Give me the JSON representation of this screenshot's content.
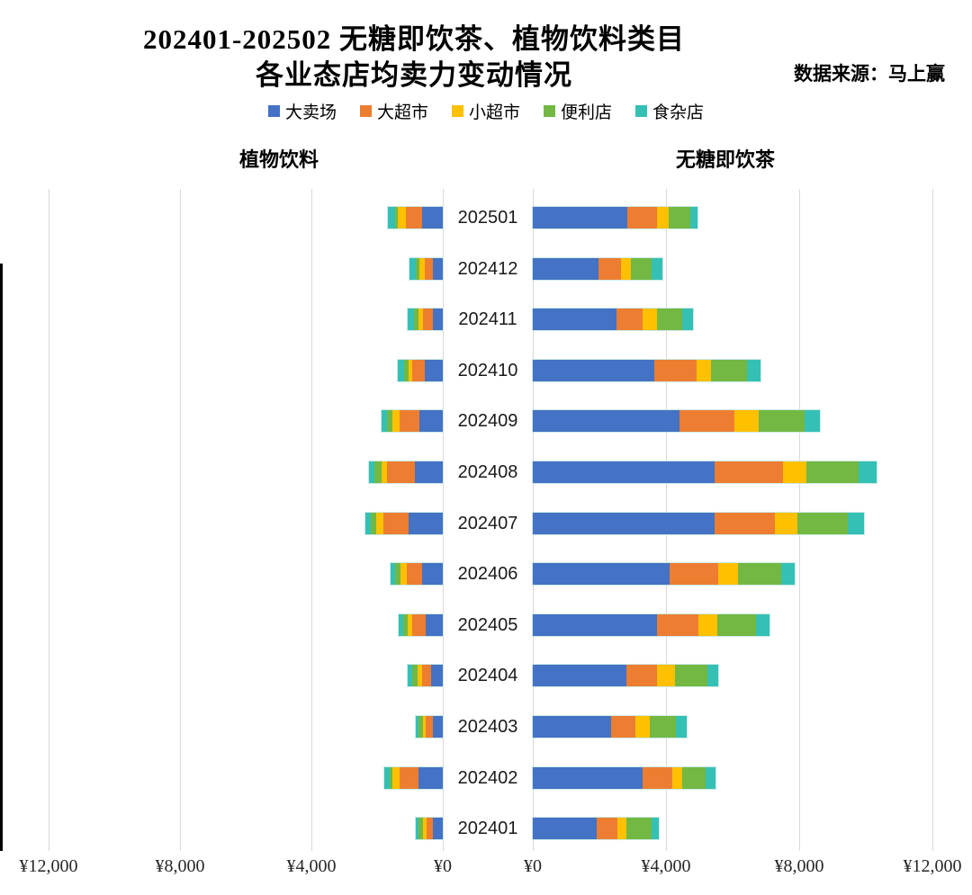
{
  "header": {
    "title_line1": "202401-202502 无糖即饮茶、植物饮料类目",
    "title_line2": "各业态店均卖力变动情况",
    "source": "数据来源：马上赢"
  },
  "legend": [
    {
      "label": "大卖场",
      "key": "hypermarket",
      "color": "#4472C4"
    },
    {
      "label": "大超市",
      "key": "big-supermarket",
      "color": "#ED7D31"
    },
    {
      "label": "小超市",
      "key": "small-supermarket",
      "color": "#FFC000"
    },
    {
      "label": "便利店",
      "key": "convenience-store",
      "color": "#72B843"
    },
    {
      "label": "食杂店",
      "key": "grocery-store",
      "color": "#35C0B5"
    }
  ],
  "panels": {
    "left_title": "植物饮料",
    "right_title": "无糖即饮茶"
  },
  "chart_data": [
    {
      "type": "bar",
      "subtype": "horizontal-stacked",
      "title": "植物饮料",
      "direction": "leftward",
      "unit": "¥ per store (店均卖力)",
      "categories": [
        "202501",
        "202412",
        "202411",
        "202410",
        "202409",
        "202408",
        "202407",
        "202406",
        "202405",
        "202404",
        "202403",
        "202402",
        "202401"
      ],
      "series": [
        {
          "name": "大卖场",
          "values": [
            640,
            310,
            310,
            560,
            700,
            860,
            1030,
            620,
            520,
            360,
            310,
            740,
            290
          ]
        },
        {
          "name": "大超市",
          "values": [
            480,
            250,
            280,
            370,
            620,
            850,
            780,
            490,
            400,
            280,
            210,
            580,
            200
          ]
        },
        {
          "name": "小超市",
          "values": [
            250,
            150,
            150,
            110,
            220,
            160,
            220,
            170,
            150,
            120,
            80,
            220,
            120
          ]
        },
        {
          "name": "便利店",
          "values": [
            90,
            120,
            150,
            140,
            150,
            210,
            170,
            160,
            130,
            160,
            130,
            90,
            120
          ]
        },
        {
          "name": "食杂店",
          "values": [
            210,
            190,
            180,
            190,
            180,
            160,
            160,
            150,
            150,
            150,
            100,
            160,
            90
          ]
        }
      ],
      "axis": {
        "min": 0,
        "max": 12000,
        "tick_step": 4000,
        "ticks": [
          "¥0",
          "¥4,000",
          "¥8,000",
          "¥12,000"
        ],
        "grid": true
      }
    },
    {
      "type": "bar",
      "subtype": "horizontal-stacked",
      "title": "无糖即饮茶",
      "direction": "rightward",
      "unit": "¥ per store (店均卖力)",
      "categories": [
        "202501",
        "202412",
        "202411",
        "202410",
        "202409",
        "202408",
        "202407",
        "202406",
        "202405",
        "202404",
        "202403",
        "202402",
        "202401"
      ],
      "series": [
        {
          "name": "大卖场",
          "values": [
            2840,
            1980,
            2520,
            3650,
            4400,
            5470,
            5470,
            4100,
            3730,
            2820,
            2350,
            3300,
            1930
          ]
        },
        {
          "name": "大超市",
          "values": [
            890,
            660,
            780,
            1270,
            1650,
            2050,
            1810,
            1470,
            1250,
            920,
            730,
            880,
            610
          ]
        },
        {
          "name": "小超市",
          "values": [
            340,
            300,
            430,
            440,
            730,
            710,
            670,
            580,
            560,
            530,
            440,
            320,
            270
          ]
        },
        {
          "name": "便利店",
          "values": [
            650,
            640,
            770,
            1060,
            1380,
            1550,
            1500,
            1320,
            1150,
            970,
            780,
            700,
            760
          ]
        },
        {
          "name": "食杂店",
          "values": [
            230,
            310,
            310,
            430,
            450,
            550,
            490,
            400,
            430,
            340,
            320,
            280,
            220
          ]
        }
      ],
      "axis": {
        "min": 0,
        "max": 12000,
        "tick_step": 4000,
        "ticks": [
          "¥0",
          "¥4,000",
          "¥8,000",
          "¥12,000"
        ],
        "grid": true
      }
    }
  ]
}
